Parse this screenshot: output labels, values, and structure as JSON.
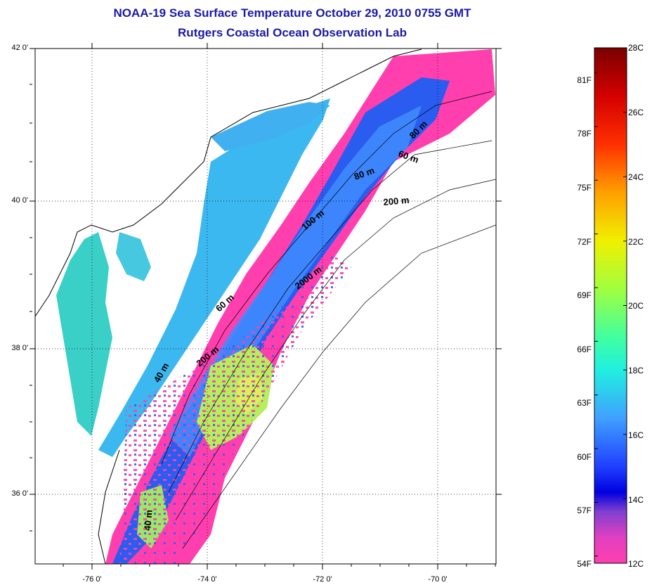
{
  "title": {
    "line1": "NOAA-19 Sea Surface Temperature October 29, 2010 0755 GMT",
    "line2": "Rutgers Coastal Ocean Observation Lab"
  },
  "map": {
    "lat_range": [
      35,
      42
    ],
    "lon_range": [
      -77,
      -69
    ],
    "lat_ticks": [
      {
        "value": 42,
        "label": "42 0'"
      },
      {
        "value": 40,
        "label": "40 0'"
      },
      {
        "value": 38,
        "label": "38 0'"
      },
      {
        "value": 36,
        "label": "36 0'"
      }
    ],
    "lon_ticks": [
      {
        "value": -76,
        "label": "-76 0'"
      },
      {
        "value": -74,
        "label": "-74 0'"
      },
      {
        "value": -72,
        "label": "-72 0'"
      },
      {
        "value": -70,
        "label": "-70 0'"
      }
    ],
    "contour_labels": [
      "80 m",
      "60 m",
      "80 m",
      "200 m",
      "100 m",
      "2000 m",
      "60 m",
      "200 m",
      "40 m",
      "40 m"
    ],
    "colors": {
      "land": "#ffffff",
      "coastline": "#000000",
      "cold_pink": "#ff3fae",
      "blue": "#2a5cf0",
      "light_blue": "#3fa2ff",
      "cyan": "#46d6e8",
      "green": "#9be76a",
      "yellow_green": "#d7f25a"
    }
  },
  "colorbar": {
    "min_c": 12,
    "max_c": 28,
    "celsius_labels": [
      "28C",
      "26C",
      "24C",
      "22C",
      "20C",
      "18C",
      "16C",
      "14C",
      "12C"
    ],
    "fahrenheit_labels": [
      "81F",
      "78F",
      "75F",
      "72F",
      "69F",
      "66F",
      "63F",
      "60F",
      "57F",
      "54F"
    ],
    "stops": [
      {
        "c": 28,
        "color": "#7a0000"
      },
      {
        "c": 26.5,
        "color": "#d40000"
      },
      {
        "c": 25,
        "color": "#ff3000"
      },
      {
        "c": 23.5,
        "color": "#ffa000"
      },
      {
        "c": 22,
        "color": "#f0f000"
      },
      {
        "c": 20.5,
        "color": "#a0ff40"
      },
      {
        "c": 19,
        "color": "#40ffa0"
      },
      {
        "c": 18,
        "color": "#20f0e0"
      },
      {
        "c": 16.5,
        "color": "#40a0ff"
      },
      {
        "c": 15,
        "color": "#2040ff"
      },
      {
        "c": 14.2,
        "color": "#0000e0"
      },
      {
        "c": 13.6,
        "color": "#8040d0"
      },
      {
        "c": 12.8,
        "color": "#e040c0"
      },
      {
        "c": 12,
        "color": "#ff40b0"
      }
    ]
  }
}
